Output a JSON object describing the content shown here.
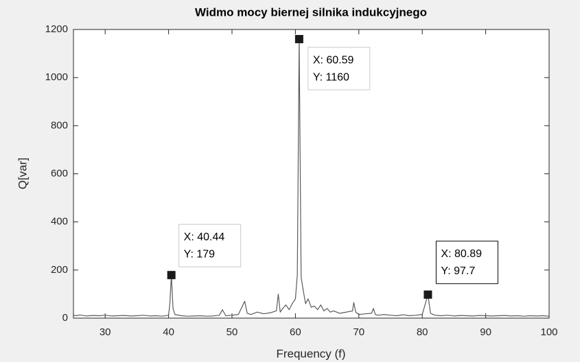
{
  "chart_data": {
    "type": "line",
    "title": "Widmo mocy biernej silnika indukcyjnego",
    "x_label": "Frequency (f)",
    "y_label": "Q[var]",
    "color": "#5a5a5a",
    "x": [
      25,
      25.5,
      26,
      27,
      28,
      29,
      30,
      31,
      32,
      33,
      34,
      35,
      36,
      37,
      38,
      39,
      40,
      40.2,
      40.44,
      40.7,
      41,
      42,
      43,
      44,
      45,
      46,
      47,
      48,
      48.5,
      49,
      50,
      51,
      52,
      52.4,
      53,
      54,
      55,
      56,
      57,
      57.3,
      57.6,
      58,
      58.5,
      59,
      59.5,
      60,
      60.3,
      60.59,
      60.9,
      61.2,
      61.6,
      62,
      62.5,
      63,
      63.5,
      64,
      64.5,
      65,
      65.5,
      66,
      67,
      68,
      69,
      69.2,
      69.5,
      70,
      71,
      72,
      72.3,
      72.6,
      73,
      74,
      75,
      76,
      77,
      78,
      79,
      80,
      80.89,
      81.3,
      82,
      83,
      84,
      85,
      86,
      87,
      88,
      89,
      90,
      91,
      92,
      93,
      94,
      95,
      96,
      97,
      98,
      99,
      100
    ],
    "values": [
      12,
      10,
      13,
      9,
      11,
      10,
      12,
      9,
      10,
      11,
      9,
      10,
      12,
      9,
      10,
      8,
      12,
      60,
      179,
      40,
      15,
      10,
      8,
      9,
      10,
      8,
      9,
      12,
      35,
      10,
      12,
      15,
      70,
      20,
      15,
      25,
      18,
      22,
      30,
      100,
      25,
      40,
      55,
      35,
      60,
      80,
      180,
      1160,
      170,
      120,
      60,
      80,
      45,
      50,
      35,
      55,
      30,
      40,
      25,
      30,
      20,
      25,
      30,
      65,
      25,
      15,
      18,
      20,
      40,
      15,
      12,
      15,
      12,
      10,
      14,
      10,
      12,
      15,
      97.7,
      20,
      12,
      10,
      12,
      9,
      11,
      10,
      9,
      11,
      10,
      9,
      10,
      11,
      9,
      10,
      8,
      10,
      9,
      10,
      8
    ],
    "xlim": [
      25,
      100
    ],
    "ylim": [
      0,
      1200
    ],
    "xticks": [
      30,
      40,
      50,
      60,
      70,
      80,
      90,
      100
    ],
    "yticks": [
      0,
      200,
      400,
      600,
      800,
      1000,
      1200
    ],
    "annotations": [
      {
        "x": 40.44,
        "y": 179,
        "x_label": "X: 40.44",
        "y_label": "Y: 179"
      },
      {
        "x": 60.59,
        "y": 1160,
        "x_label": "X: 60.59",
        "y_label": "Y: 1160"
      },
      {
        "x": 80.89,
        "y": 97.7,
        "x_label": "X: 80.89",
        "y_label": "Y: 97.7"
      }
    ]
  }
}
